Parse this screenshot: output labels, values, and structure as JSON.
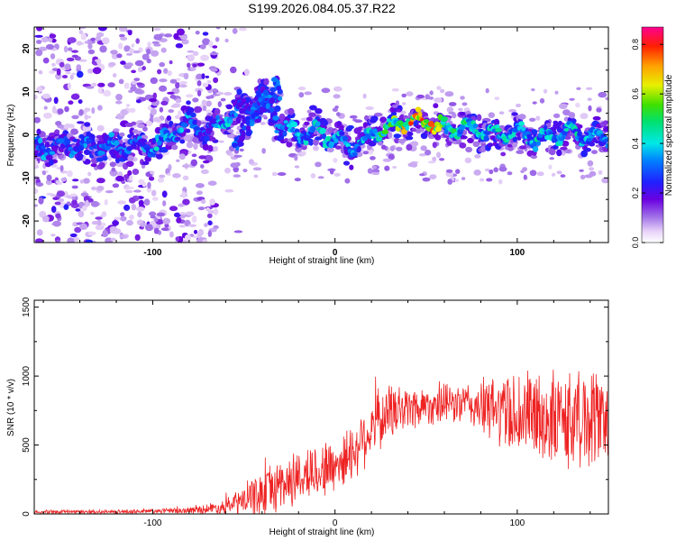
{
  "title": "S199.2026.084.05.37.R22",
  "colors": {
    "snr_line": "#ee2222",
    "background": "#ffffff",
    "axis": "#000000"
  },
  "chart_data": [
    {
      "type": "heatmap",
      "name": "spectrogram",
      "xlabel": "Height of straight line (km)",
      "ylabel": "Frequency (Hz)",
      "xlim": [
        -165,
        150
      ],
      "ylim": [
        -25,
        25
      ],
      "xticks": [
        -100,
        0,
        100
      ],
      "yticks": [
        -20,
        -10,
        0,
        10,
        20
      ],
      "colorbar": {
        "label": "Normalized spectral amplitude",
        "range": [
          0,
          0.87
        ],
        "ticks": [
          0.0,
          0.2,
          0.4,
          0.6,
          0.8
        ]
      },
      "ridge": {
        "x": [
          -160,
          -150,
          -140,
          -130,
          -120,
          -110,
          -100,
          -90,
          -80,
          -70,
          -60,
          -50,
          -40,
          -30,
          -20,
          -10,
          0,
          10,
          20,
          30,
          40,
          50,
          60,
          70,
          80,
          90,
          100,
          110,
          120,
          130,
          140,
          148
        ],
        "freq": [
          -3,
          -2,
          -3,
          -2,
          -3,
          -2,
          -3,
          0,
          3,
          0,
          4,
          6,
          10,
          2,
          0,
          1,
          -1,
          -3,
          0,
          2,
          3,
          3,
          1,
          2,
          1,
          0,
          1,
          -1,
          0,
          1,
          -1,
          0
        ],
        "amplitude": [
          0.35,
          0.3,
          0.35,
          0.3,
          0.35,
          0.3,
          0.4,
          0.4,
          0.35,
          0.3,
          0.4,
          0.3,
          0.25,
          0.35,
          0.4,
          0.45,
          0.4,
          0.35,
          0.45,
          0.55,
          0.7,
          0.87,
          0.55,
          0.5,
          0.45,
          0.45,
          0.4,
          0.45,
          0.4,
          0.45,
          0.4,
          0.35
        ]
      }
    },
    {
      "type": "line",
      "name": "snr",
      "xlabel": "Height of straight line (km)",
      "ylabel": "SNR (10 * v/v)",
      "xlim": [
        -165,
        150
      ],
      "ylim": [
        0,
        1550
      ],
      "xticks": [
        -100,
        0,
        100
      ],
      "yticks": [
        0,
        500,
        1000,
        1500
      ],
      "envelope": {
        "x": [
          -165,
          -120,
          -80,
          -60,
          -45,
          -30,
          -15,
          0,
          10,
          20,
          30,
          50,
          70,
          85,
          100,
          120,
          140,
          150
        ],
        "mean": [
          15,
          15,
          25,
          50,
          120,
          210,
          290,
          350,
          450,
          630,
          740,
          790,
          800,
          760,
          730,
          680,
          690,
          720
        ],
        "spread": [
          15,
          15,
          25,
          60,
          160,
          220,
          220,
          230,
          230,
          260,
          230,
          160,
          160,
          260,
          360,
          380,
          420,
          380
        ]
      }
    }
  ]
}
